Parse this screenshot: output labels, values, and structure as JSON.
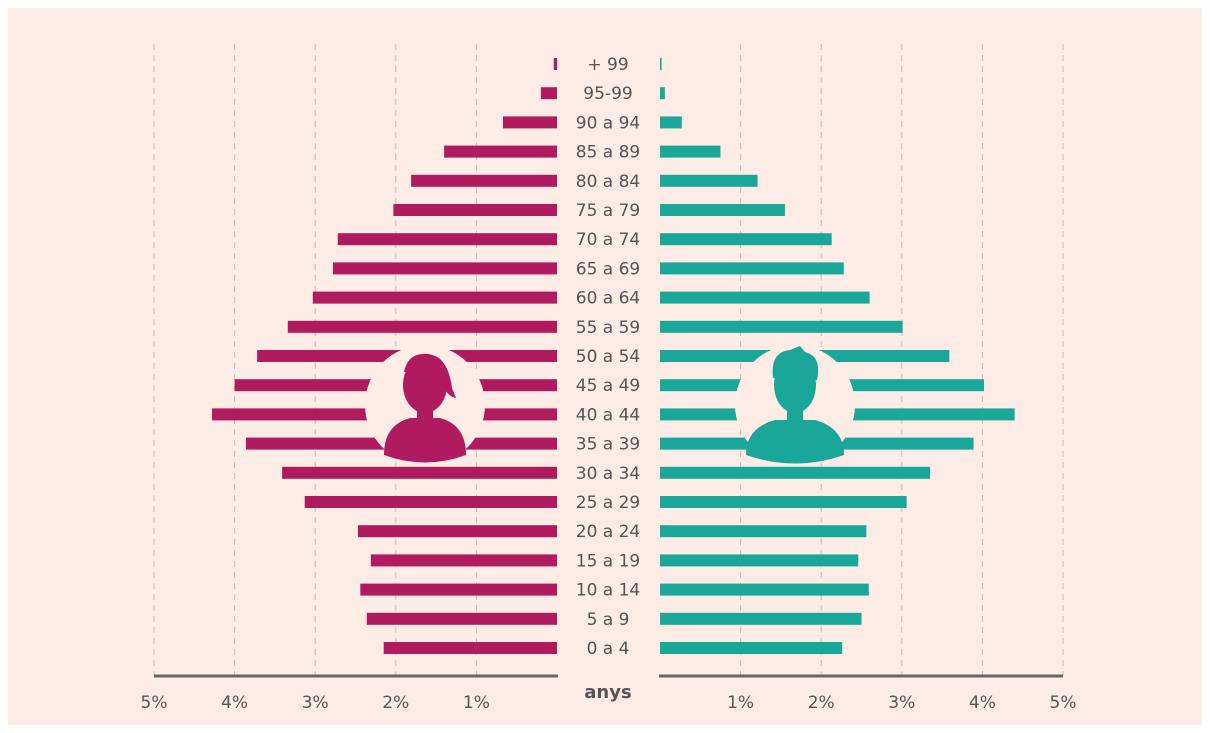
{
  "chart_data": {
    "type": "pyramid",
    "axis_label": "anys",
    "categories": [
      "0 a 4",
      "5 a 9",
      "10 a 14",
      "15 a 19",
      "20 a 24",
      "25 a 29",
      "30 a 34",
      "35 a 39",
      "40 a 44",
      "45 a 49",
      "50 a 54",
      "55 a 59",
      "60 a 64",
      "65 a 69",
      "70 a 74",
      "75 a 79",
      "80 a 84",
      "85 a 89",
      "90 a 94",
      "95-99",
      "+ 99"
    ],
    "series": [
      {
        "color": "#b01a5e",
        "side": "left",
        "values": [
          2.15,
          2.36,
          2.44,
          2.31,
          2.47,
          3.13,
          3.41,
          3.86,
          4.28,
          4.0,
          3.72,
          3.34,
          3.03,
          2.78,
          2.72,
          2.03,
          1.81,
          1.4,
          0.67,
          0.2,
          0.04
        ]
      },
      {
        "color": "#1aa699",
        "side": "right",
        "values": [
          2.26,
          2.5,
          2.59,
          2.46,
          2.56,
          3.06,
          3.35,
          3.89,
          4.4,
          4.02,
          3.59,
          3.01,
          2.6,
          2.28,
          2.13,
          1.55,
          1.21,
          0.75,
          0.27,
          0.06,
          0.02
        ]
      }
    ],
    "xlim": [
      0,
      5
    ],
    "xticks": [
      {
        "value": 1,
        "label": "1%"
      },
      {
        "value": 2,
        "label": "2%"
      },
      {
        "value": 3,
        "label": "3%"
      },
      {
        "value": 4,
        "label": "4%"
      },
      {
        "value": 5,
        "label": "5%"
      }
    ],
    "grid": true
  }
}
